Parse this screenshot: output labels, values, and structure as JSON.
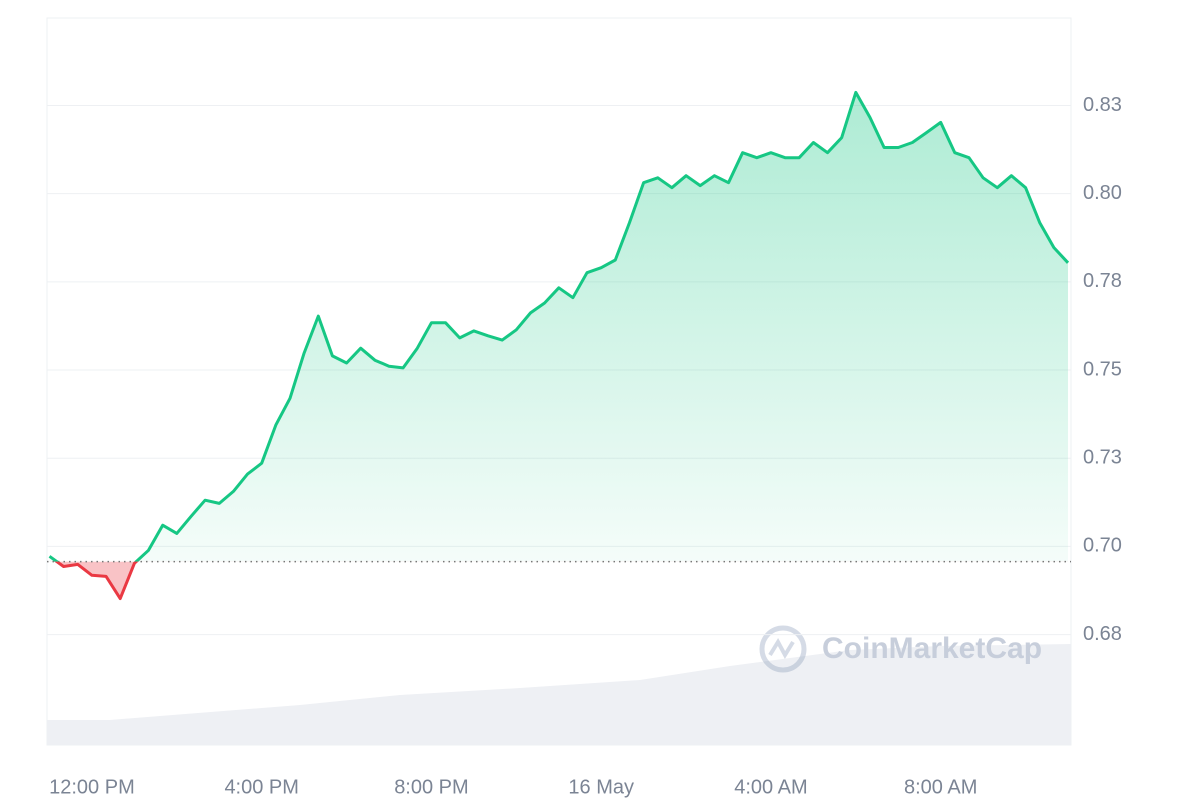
{
  "chart_data": {
    "type": "line",
    "categories": [
      null,
      null,
      null,
      "12:00 PM",
      null,
      null,
      null,
      null,
      null,
      null,
      null,
      null,
      null,
      null,
      null,
      "4:00 PM",
      null,
      null,
      null,
      null,
      null,
      null,
      null,
      null,
      null,
      null,
      null,
      "8:00 PM",
      null,
      null,
      null,
      null,
      null,
      null,
      null,
      null,
      null,
      null,
      null,
      "16 May",
      null,
      null,
      null,
      null,
      null,
      null,
      null,
      null,
      null,
      null,
      null,
      "4:00 AM",
      null,
      null,
      null,
      null,
      null,
      null,
      null,
      null,
      null,
      null,
      null,
      "8:00 AM",
      null,
      null,
      null,
      null,
      null,
      null,
      null,
      null,
      null
    ],
    "series": [
      {
        "color": "#16c784",
        "color_below": "#ea3943",
        "values": [
          0.6972,
          0.6943,
          0.6949,
          0.6918,
          0.6915,
          0.6852,
          0.6952,
          0.6989,
          0.706,
          0.7037,
          0.7085,
          0.7131,
          0.7122,
          0.7156,
          0.7205,
          0.7236,
          0.7344,
          0.742,
          0.7548,
          0.7653,
          0.754,
          0.752,
          0.7562,
          0.7528,
          0.7511,
          0.7506,
          0.7562,
          0.7634,
          0.7634,
          0.7591,
          0.7611,
          0.7597,
          0.7585,
          0.7614,
          0.7662,
          0.769,
          0.7733,
          0.7705,
          0.7776,
          0.779,
          0.7812,
          0.7918,
          0.8031,
          0.8045,
          0.8017,
          0.8051,
          0.8023,
          0.8051,
          0.8031,
          0.8116,
          0.8102,
          0.8116,
          0.8102,
          0.8102,
          0.8145,
          0.8116,
          0.8159,
          0.8287,
          0.8216,
          0.8131,
          0.8131,
          0.8145,
          0.8173,
          0.8202,
          0.8116,
          0.8102,
          0.8045,
          0.8017,
          0.8051,
          0.8017,
          0.7918,
          0.7847,
          0.7804
        ]
      }
    ],
    "reference_line": 0.6957,
    "ylim": [
      0.6437,
      0.8498
    ],
    "yticks": [
      {
        "value": 0.675,
        "label": "0.68"
      },
      {
        "value": 0.7,
        "label": "0.70"
      },
      {
        "value": 0.725,
        "label": "0.73"
      },
      {
        "value": 0.75,
        "label": "0.75"
      },
      {
        "value": 0.775,
        "label": "0.78"
      },
      {
        "value": 0.8,
        "label": "0.80"
      },
      {
        "value": 0.825,
        "label": "0.83"
      }
    ],
    "grid": true,
    "watermark": "CoinMarketCap"
  }
}
